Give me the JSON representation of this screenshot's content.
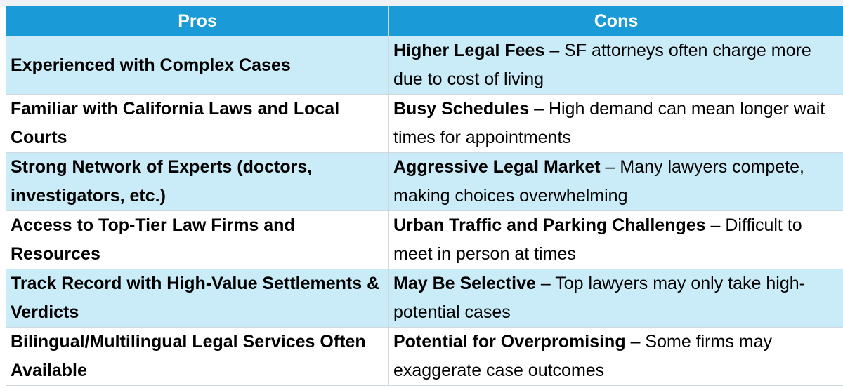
{
  "table": {
    "header": [
      "Pros",
      "Cons"
    ],
    "rows": [
      {
        "pro": "Experienced with Complex Cases",
        "con_term": "Higher Legal Fees",
        "con_text": "– SF attorneys often charge more due to cost of living"
      },
      {
        "pro": "Familiar with California Laws and Local Courts",
        "con_term": "Busy Schedules",
        "con_text": "– High demand can mean longer wait times for appointments"
      },
      {
        "pro": "Strong Network of Experts (doctors, investigators, etc.)",
        "con_term": "Aggressive Legal Market",
        "con_text": "– Many lawyers compete, making choices overwhelming"
      },
      {
        "pro": "Access to Top-Tier Law Firms and Resources",
        "con_term": "Urban Traffic and Parking Challenges",
        "con_text": "– Difficult to meet in person at times"
      },
      {
        "pro": "Track Record with High-Value Settlements & Verdicts",
        "con_term": "May Be Selective",
        "con_text": "– Top lawyers may only take high-potential cases"
      },
      {
        "pro": "Bilingual/Multilingual Legal Services Often Available",
        "con_term": "Potential for Overpromising",
        "con_text": "– Some firms may exaggerate case outcomes"
      }
    ]
  }
}
